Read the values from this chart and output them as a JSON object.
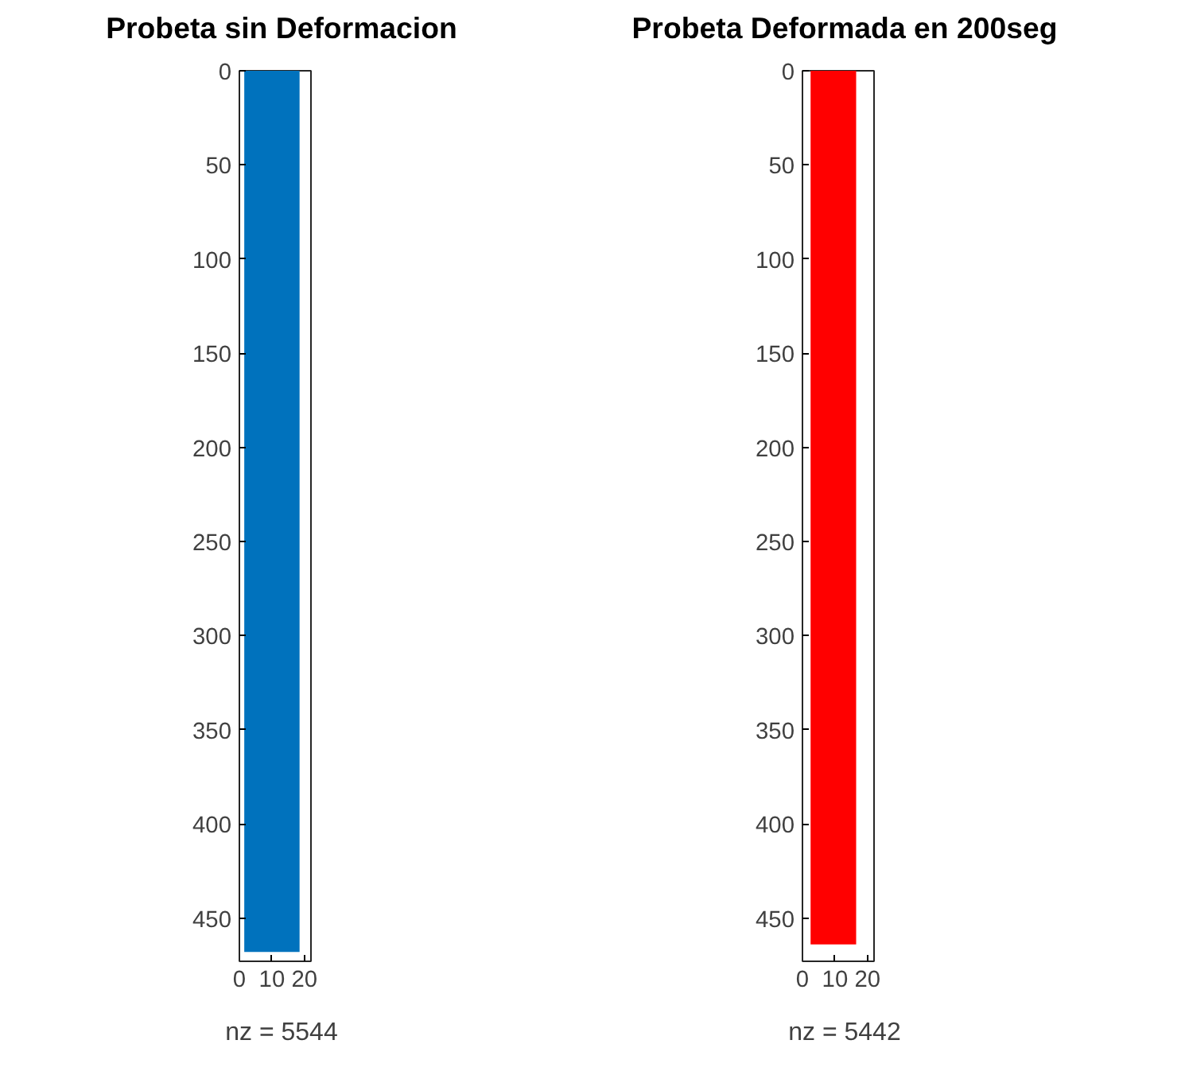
{
  "chart_data": [
    {
      "type": "area",
      "title": "Probeta sin Deformacion",
      "xlabel": "nz = 5544",
      "x": [
        1.5,
        18.5
      ],
      "values": [
        468,
        468
      ],
      "color": "#0072bd",
      "xlim": [
        0,
        22
      ],
      "xticks": [
        0,
        10,
        20
      ],
      "ylim": [
        473,
        0
      ],
      "yticks": [
        0,
        50,
        100,
        150,
        200,
        250,
        300,
        350,
        400,
        450
      ]
    },
    {
      "type": "area",
      "title": "Probeta Deformada en 200seg",
      "xlabel": "nz = 5442",
      "x": [
        2.5,
        16.5
      ],
      "values": [
        464,
        464
      ],
      "color": "#ff0000",
      "xlim": [
        0,
        22
      ],
      "xticks": [
        0,
        10,
        20
      ],
      "ylim": [
        473,
        0
      ],
      "yticks": [
        0,
        50,
        100,
        150,
        200,
        250,
        300,
        350,
        400,
        450
      ]
    }
  ]
}
